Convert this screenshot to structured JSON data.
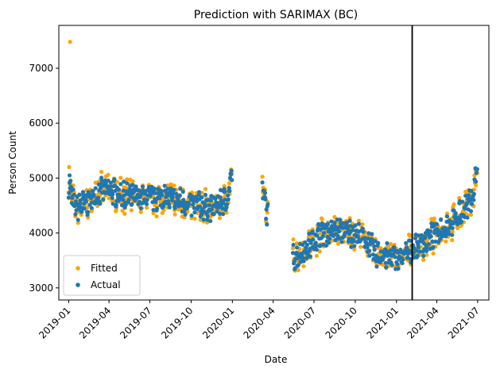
{
  "chart_data": {
    "type": "scatter",
    "title": "Prediction with SARIMAX (BC)",
    "xlabel": "Date",
    "ylabel": "Person Count",
    "xlim": [
      "2018-12-10",
      "2021-07-26"
    ],
    "ylim": [
      2780,
      7780
    ],
    "xticks": [
      {
        "date": "2019-01-01",
        "label": "2019-01"
      },
      {
        "date": "2019-04-01",
        "label": "2019-04"
      },
      {
        "date": "2019-07-01",
        "label": "2019-07"
      },
      {
        "date": "2019-10-01",
        "label": "2019-10"
      },
      {
        "date": "2020-01-01",
        "label": "2020-01"
      },
      {
        "date": "2020-04-01",
        "label": "2020-04"
      },
      {
        "date": "2020-07-01",
        "label": "2020-07"
      },
      {
        "date": "2020-10-01",
        "label": "2020-10"
      },
      {
        "date": "2021-01-01",
        "label": "2021-01"
      },
      {
        "date": "2021-04-01",
        "label": "2021-04"
      },
      {
        "date": "2021-07-01",
        "label": "2021-07"
      }
    ],
    "yticks": [
      3000,
      4000,
      5000,
      6000,
      7000
    ],
    "grid": false,
    "legend_position": "lower-left",
    "split_line": {
      "date": "2021-02-05",
      "color": "#000000"
    },
    "segments": [
      {
        "start": "2019-01-01",
        "end": "2019-12-31",
        "knots": [
          [
            "2019-01-01",
            4900
          ],
          [
            "2019-01-15",
            4450
          ],
          [
            "2019-02-10",
            4550
          ],
          [
            "2019-03-20",
            4800
          ],
          [
            "2019-05-15",
            4650
          ],
          [
            "2019-08-01",
            4650
          ],
          [
            "2019-09-15",
            4550
          ],
          [
            "2019-11-15",
            4450
          ],
          [
            "2019-12-20",
            4600
          ],
          [
            "2019-12-31",
            5100
          ]
        ]
      },
      {
        "start": "2020-03-08",
        "end": "2020-03-20",
        "knots": [
          [
            "2020-03-08",
            4800
          ],
          [
            "2020-03-20",
            4300
          ]
        ]
      },
      {
        "start": "2020-05-15",
        "end": "2021-06-30",
        "knots": [
          [
            "2020-05-15",
            3550
          ],
          [
            "2020-06-15",
            3700
          ],
          [
            "2020-07-15",
            4000
          ],
          [
            "2020-09-01",
            4050
          ],
          [
            "2020-10-15",
            3950
          ],
          [
            "2020-11-20",
            3600
          ],
          [
            "2021-01-10",
            3550
          ],
          [
            "2021-02-15",
            3750
          ],
          [
            "2021-04-01",
            4000
          ],
          [
            "2021-05-15",
            4250
          ],
          [
            "2021-06-20",
            4650
          ],
          [
            "2021-06-30",
            5200
          ]
        ]
      }
    ],
    "noise_amplitude": 170,
    "outliers": [
      {
        "series": "Fitted",
        "date": "2019-01-04",
        "value": 7480
      },
      {
        "series": "Fitted",
        "date": "2019-01-02",
        "value": 5200
      },
      {
        "series": "Actual",
        "date": "2019-01-03",
        "value": 5050
      }
    ],
    "series": [
      {
        "name": "Fitted",
        "color": "#ffa500"
      },
      {
        "name": "Actual",
        "color": "#1f77b4"
      }
    ]
  }
}
